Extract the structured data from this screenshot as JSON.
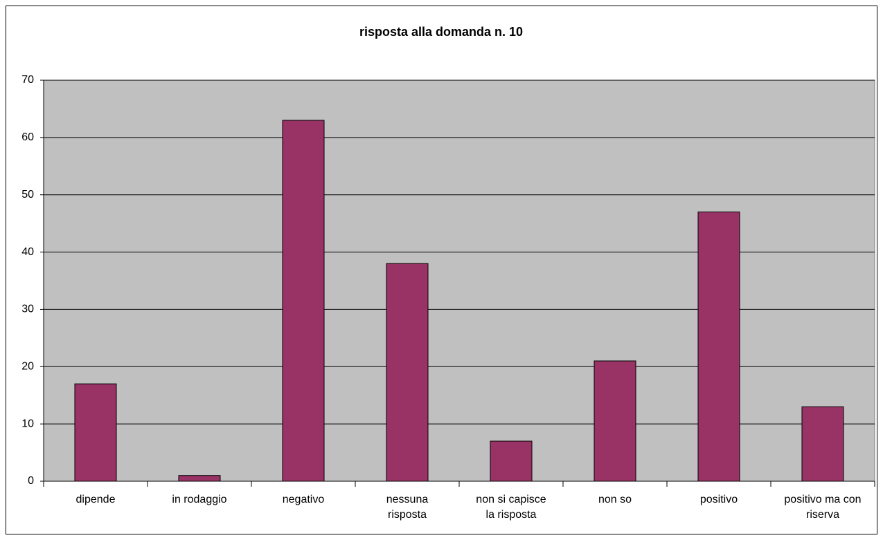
{
  "chart_data": {
    "type": "bar",
    "title": "risposta alla domanda n. 10",
    "categories": [
      "dipende",
      "in rodaggio",
      "negativo",
      "nessuna risposta",
      "non si capisce la risposta",
      "non so",
      "positivo",
      "positivo ma con riserva"
    ],
    "values": [
      17,
      1,
      63,
      38,
      7,
      21,
      47,
      13
    ],
    "color": "#993366",
    "ylim": [
      0,
      70
    ],
    "yticks": [
      0,
      10,
      20,
      30,
      40,
      50,
      60,
      70
    ],
    "grid": true
  }
}
